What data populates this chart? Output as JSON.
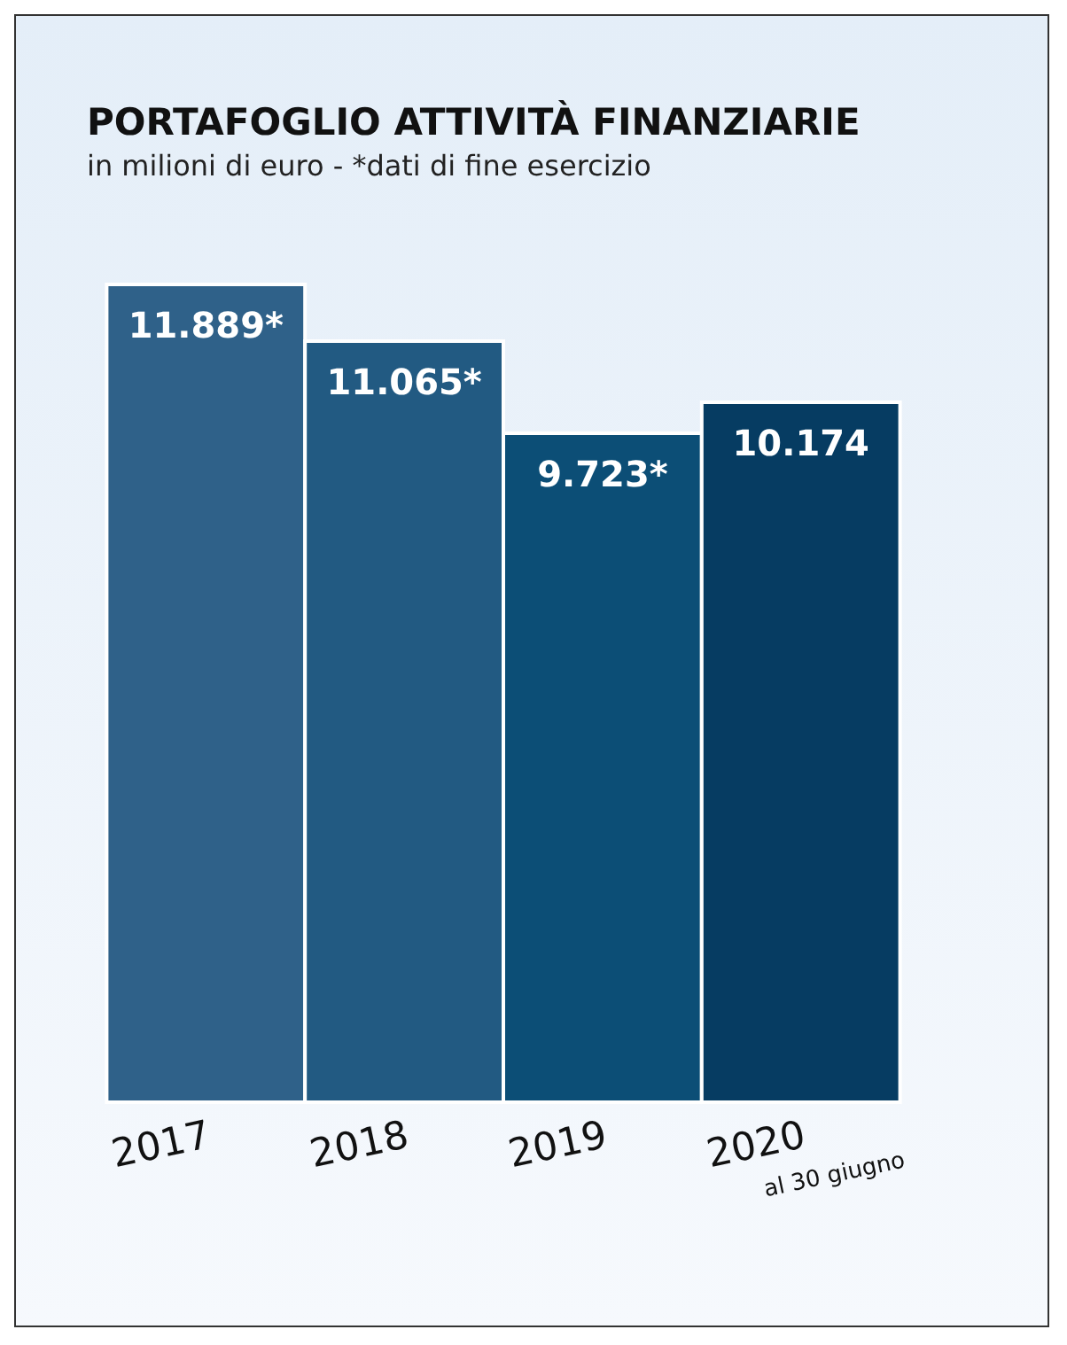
{
  "chart_data": {
    "type": "bar",
    "title": "PORTAFOGLIO ATTIVITÀ FINANZIARIE",
    "subtitle": "in milioni di euro - *dati di fine esercizio",
    "categories": [
      "2017",
      "2018",
      "2019",
      "2020"
    ],
    "values": [
      11889,
      11065,
      9723,
      10174
    ],
    "colors": [
      "#2f6189",
      "#225a82",
      "#0c4e76",
      "#063c62"
    ],
    "value_labels": [
      "11.889*",
      "11.065*",
      "9.723*",
      "10.174"
    ],
    "annotations": [
      "al 30 giugno"
    ]
  }
}
